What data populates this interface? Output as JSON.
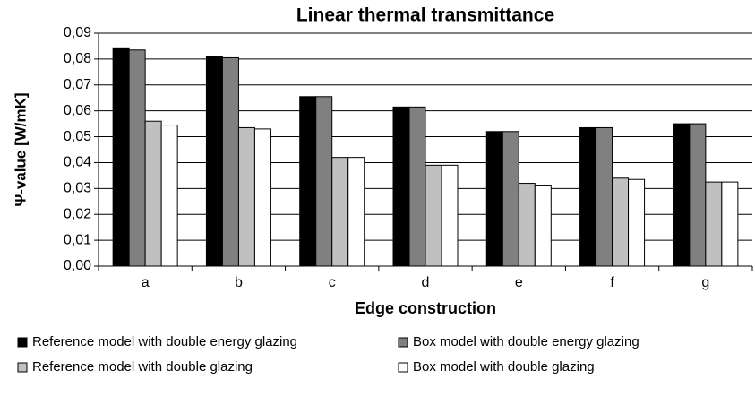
{
  "chart_data": {
    "type": "bar",
    "title": "Linear thermal transmittance",
    "x_label": "Edge construction",
    "y_label": "Ψ-value [W/mK]",
    "categories": [
      "a",
      "b",
      "c",
      "d",
      "e",
      "f",
      "g"
    ],
    "series": [
      {
        "name": "Reference model with double energy glazing",
        "color": "#000000",
        "values": [
          0.084,
          0.081,
          0.0655,
          0.0615,
          0.052,
          0.0535,
          0.055
        ]
      },
      {
        "name": "Box model with double energy glazing",
        "color": "#808080",
        "values": [
          0.0835,
          0.0805,
          0.0655,
          0.0615,
          0.052,
          0.0535,
          0.055
        ]
      },
      {
        "name": "Reference model with double glazing",
        "color": "#c0c0c0",
        "values": [
          0.056,
          0.0535,
          0.042,
          0.039,
          0.032,
          0.034,
          0.0325
        ]
      },
      {
        "name": "Box model with double glazing",
        "color": "#ffffff",
        "values": [
          0.0545,
          0.053,
          0.042,
          0.039,
          0.031,
          0.0335,
          0.0325
        ]
      }
    ],
    "ylim": [
      0,
      0.09
    ],
    "yticks": [
      {
        "value": 0,
        "label": "0,00"
      },
      {
        "value": 0.01,
        "label": "0,01"
      },
      {
        "value": 0.02,
        "label": "0,02"
      },
      {
        "value": 0.03,
        "label": "0,03"
      },
      {
        "value": 0.04,
        "label": "0,04"
      },
      {
        "value": 0.05,
        "label": "0,05"
      },
      {
        "value": 0.06,
        "label": "0,06"
      },
      {
        "value": 0.07,
        "label": "0,07"
      },
      {
        "value": 0.08,
        "label": "0,08"
      },
      {
        "value": 0.09,
        "label": "0,09"
      }
    ],
    "grid": true,
    "legend": "bottom"
  }
}
